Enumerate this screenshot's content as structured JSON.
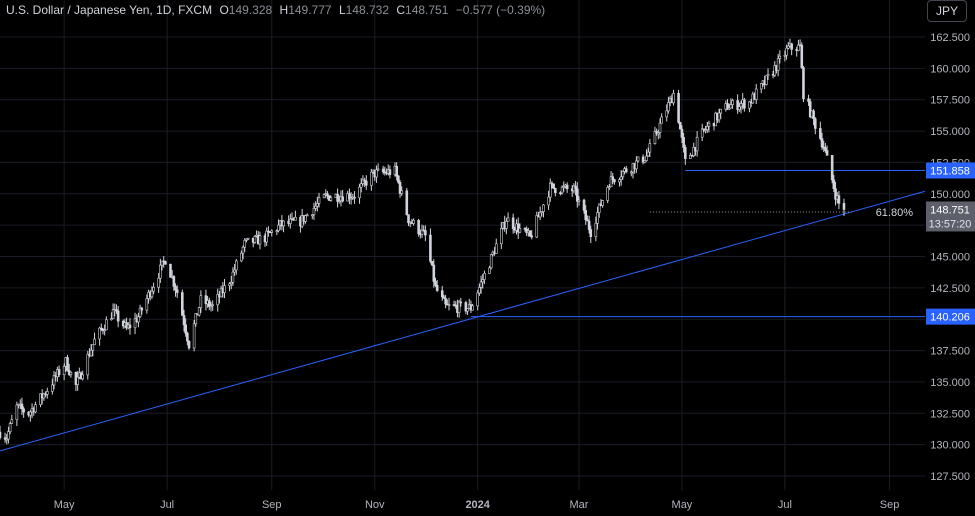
{
  "header": {
    "symbol": "U.S. Dollar / Japanese Yen, 1D, FXCM",
    "open_label": "O",
    "open": "149.328",
    "high_label": "H",
    "high": "149.777",
    "low_label": "L",
    "low": "148.732",
    "close_label": "C",
    "close": "148.751",
    "change": "−0.577 (−0.39%)"
  },
  "currency_button": "JPY",
  "chart_data": {
    "type": "candlestick",
    "y_range": [
      126.5,
      163.8
    ],
    "y_ticks": [
      "162.500",
      "160.000",
      "157.500",
      "155.000",
      "152.500",
      "150.000",
      "147.500",
      "145.000",
      "142.500",
      "140.000",
      "137.500",
      "135.000",
      "132.500",
      "130.000",
      "127.500"
    ],
    "x_labels": [
      {
        "label": "May",
        "date": "2023-05-01",
        "bold": false
      },
      {
        "label": "Jul",
        "date": "2023-07-01",
        "bold": false
      },
      {
        "label": "Sep",
        "date": "2023-09-01",
        "bold": false
      },
      {
        "label": "Nov",
        "date": "2023-11-01",
        "bold": false
      },
      {
        "label": "2024",
        "date": "2024-01-01",
        "bold": true
      },
      {
        "label": "Mar",
        "date": "2024-03-01",
        "bold": false
      },
      {
        "label": "May",
        "date": "2024-05-01",
        "bold": false
      },
      {
        "label": "Jul",
        "date": "2024-07-01",
        "bold": false
      },
      {
        "label": "Sep",
        "date": "2024-09-01",
        "bold": false
      }
    ],
    "x_range": [
      "2023-03-24",
      "2024-09-22"
    ],
    "path": [
      [
        "2023-03-24",
        131.0
      ],
      [
        "2023-03-28",
        130.6
      ],
      [
        "2023-04-03",
        133.0
      ],
      [
        "2023-04-10",
        132.5
      ],
      [
        "2023-04-20",
        134.2
      ],
      [
        "2023-05-02",
        136.6
      ],
      [
        "2023-05-08",
        134.7
      ],
      [
        "2023-05-19",
        138.3
      ],
      [
        "2023-05-30",
        140.6
      ],
      [
        "2023-06-07",
        139.2
      ],
      [
        "2023-06-14",
        140.2
      ],
      [
        "2023-06-30",
        144.8
      ],
      [
        "2023-07-07",
        142.2
      ],
      [
        "2023-07-14",
        138.0
      ],
      [
        "2023-07-21",
        141.5
      ],
      [
        "2023-07-28",
        141.0
      ],
      [
        "2023-08-08",
        143.3
      ],
      [
        "2023-08-16",
        146.0
      ],
      [
        "2023-08-28",
        146.5
      ],
      [
        "2023-09-06",
        147.5
      ],
      [
        "2023-09-18",
        147.8
      ],
      [
        "2023-10-03",
        149.8
      ],
      [
        "2023-10-20",
        149.9
      ],
      [
        "2023-10-31",
        151.6
      ],
      [
        "2023-11-13",
        151.8
      ],
      [
        "2023-11-21",
        148.0
      ],
      [
        "2023-12-01",
        146.6
      ],
      [
        "2023-12-07",
        142.5
      ],
      [
        "2023-12-13",
        141.0
      ],
      [
        "2023-12-28",
        140.9
      ],
      [
        "2024-01-08",
        144.5
      ],
      [
        "2024-01-18",
        148.0
      ],
      [
        "2024-02-01",
        146.5
      ],
      [
        "2024-02-13",
        150.5
      ],
      [
        "2024-02-27",
        150.3
      ],
      [
        "2024-03-08",
        147.0
      ],
      [
        "2024-03-19",
        151.0
      ],
      [
        "2024-04-10",
        153.0
      ],
      [
        "2024-04-26",
        158.0
      ],
      [
        "2024-04-29",
        156.0
      ],
      [
        "2024-05-03",
        152.5
      ],
      [
        "2024-05-14",
        155.0
      ],
      [
        "2024-05-28",
        157.0
      ],
      [
        "2024-06-10",
        157.3
      ],
      [
        "2024-06-20",
        159.0
      ],
      [
        "2024-07-03",
        161.6
      ],
      [
        "2024-07-10",
        161.7
      ],
      [
        "2024-07-12",
        158.0
      ],
      [
        "2024-07-17",
        156.2
      ],
      [
        "2024-07-24",
        153.8
      ],
      [
        "2024-07-31",
        150.0
      ],
      [
        "2024-08-02",
        149.2
      ],
      [
        "2024-08-05",
        148.8
      ]
    ],
    "last_price": {
      "label": "148.751",
      "value": 148.751,
      "countdown": "13:57:20"
    },
    "horizontal_levels": [
      {
        "label": "151.858",
        "value": 151.858,
        "from": "2024-05-03"
      },
      {
        "label": "140.206",
        "value": 140.206,
        "from": "2023-12-28"
      }
    ],
    "fib_level": {
      "label": "61.80%",
      "value": 148.55,
      "from": "2024-04-12",
      "to": "2024-08-10"
    },
    "trendline": {
      "from": [
        "2023-03-24",
        129.5
      ],
      "to": [
        "2024-09-22",
        150.2
      ]
    },
    "colors": {
      "candle": "#d1d4dc",
      "lines": "#2962ff",
      "tag": "#2962ff",
      "price_tag": "#5d606b",
      "grid": "#1a1d26"
    }
  }
}
